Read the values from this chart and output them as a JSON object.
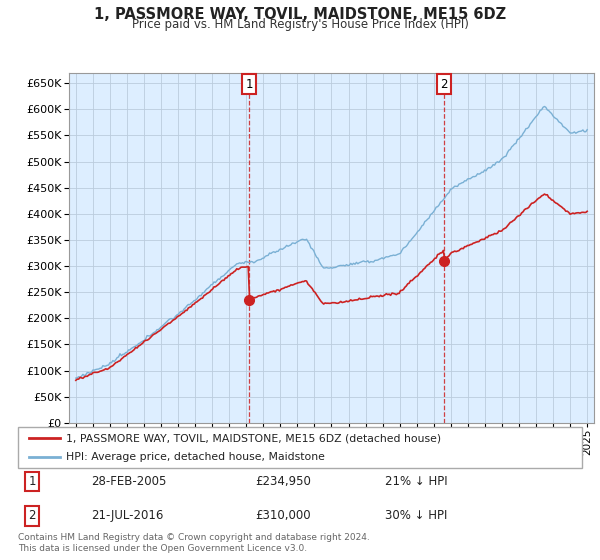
{
  "title": "1, PASSMORE WAY, TOVIL, MAIDSTONE, ME15 6DZ",
  "subtitle": "Price paid vs. HM Land Registry's House Price Index (HPI)",
  "background_color": "#ffffff",
  "plot_bg_color": "#ddeeff",
  "grid_color": "#bbccdd",
  "hpi_color": "#7ab0d4",
  "price_color": "#cc2222",
  "ylim": [
    0,
    670000
  ],
  "yticks": [
    0,
    50000,
    100000,
    150000,
    200000,
    250000,
    300000,
    350000,
    400000,
    450000,
    500000,
    550000,
    600000,
    650000
  ],
  "sale1_price": 234950,
  "sale2_price": 310000,
  "legend_house_label": "1, PASSMORE WAY, TOVIL, MAIDSTONE, ME15 6DZ (detached house)",
  "legend_hpi_label": "HPI: Average price, detached house, Maidstone",
  "table_row1": [
    "1",
    "28-FEB-2005",
    "£234,950",
    "21% ↓ HPI"
  ],
  "table_row2": [
    "2",
    "21-JUL-2016",
    "£310,000",
    "30% ↓ HPI"
  ],
  "footer": "Contains HM Land Registry data © Crown copyright and database right 2024.\nThis data is licensed under the Open Government Licence v3.0.",
  "xstart_year": 1995,
  "xend_year": 2025
}
